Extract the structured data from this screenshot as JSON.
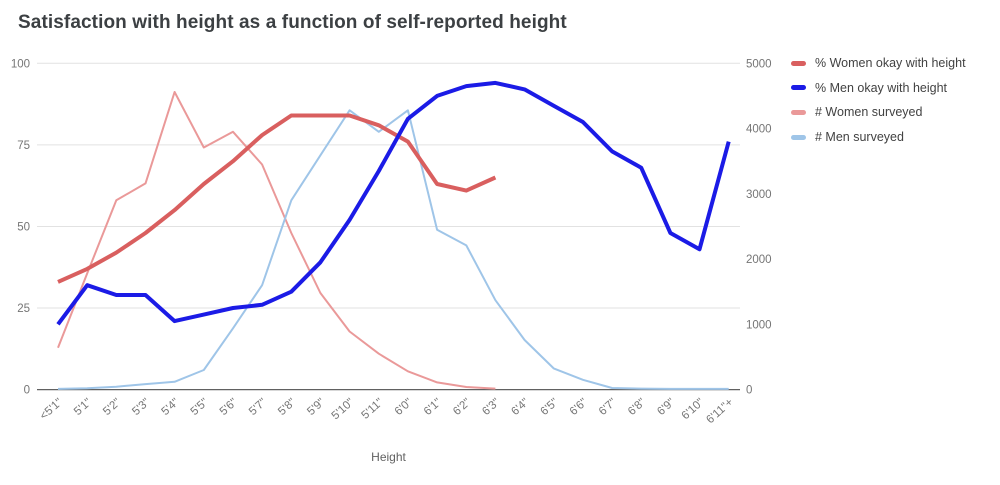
{
  "title": "Satisfaction with height as a function of self-reported height",
  "xlabel": "Height",
  "chart_data": {
    "type": "line",
    "title": "Satisfaction with height as a function of self-reported height",
    "xlabel": "Height",
    "grid": true,
    "legend_position": "right",
    "categories": [
      "<5'1\"",
      "5'1\"",
      "5'2\"",
      "5'3\"",
      "5'4\"",
      "5'5\"",
      "5'6\"",
      "5'7\"",
      "5'8\"",
      "5'9\"",
      "5'10\"",
      "5'11\"",
      "6'0\"",
      "6'1\"",
      "6'2\"",
      "6'3\"",
      "6'4\"",
      "6'5\"",
      "6'6\"",
      "6'7\"",
      "6'8\"",
      "6'9\"",
      "6'10\"",
      "6'11\"+"
    ],
    "series": [
      {
        "name": "% Women okay with height",
        "axis": "left",
        "color": "#d95f5f",
        "width": 4,
        "values": [
          33,
          37,
          42,
          48,
          55,
          63,
          70,
          78,
          84,
          84,
          84,
          81,
          76,
          63,
          61,
          65,
          null,
          null,
          null,
          null,
          null,
          null,
          null,
          null
        ]
      },
      {
        "name": "% Men okay with height",
        "axis": "left",
        "color": "#1b1be6",
        "width": 4,
        "values": [
          20,
          32,
          29,
          29,
          21,
          23,
          25,
          26,
          30,
          39,
          52,
          67,
          83,
          90,
          93,
          94,
          92,
          87,
          82,
          73,
          68,
          48,
          43,
          76
        ]
      },
      {
        "name": "# Women surveyed",
        "axis": "right",
        "color": "#ea9999",
        "width": 2,
        "values": [
          640,
          1780,
          2900,
          3160,
          4560,
          3710,
          3950,
          3450,
          2400,
          1480,
          890,
          550,
          280,
          110,
          40,
          15,
          null,
          null,
          null,
          null,
          null,
          null,
          null,
          null
        ]
      },
      {
        "name": "# Men surveyed",
        "axis": "right",
        "color": "#9fc5e8",
        "width": 2,
        "values": [
          10,
          20,
          45,
          85,
          120,
          300,
          940,
          1600,
          2900,
          3590,
          4280,
          3950,
          4280,
          2450,
          2210,
          1370,
          760,
          325,
          150,
          25,
          15,
          10,
          10,
          10
        ]
      }
    ],
    "axes": {
      "left": {
        "min": 0,
        "max": 100,
        "ticks": [
          0,
          25,
          50,
          75,
          100
        ]
      },
      "right": {
        "min": 0,
        "max": 5000,
        "ticks": [
          0,
          1000,
          2000,
          3000,
          4000,
          5000
        ]
      }
    },
    "colors": {
      "gridline": "#e2e2e2",
      "baseline": "#616161",
      "tick_text": "#757575",
      "title_text": "#3c4043",
      "legend_text": "#424242"
    }
  }
}
